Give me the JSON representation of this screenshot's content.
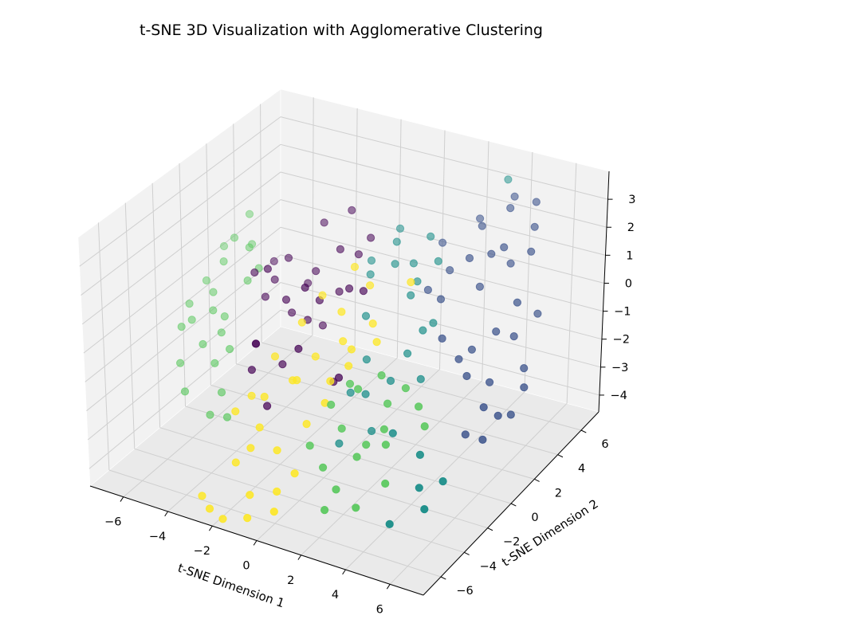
{
  "chart_data": {
    "type": "scatter3d",
    "title": "t-SNE 3D Visualization with Agglomerative Clustering",
    "xlabel": "t-SNE Dimension 1",
    "ylabel": "t-SNE Dimension 2",
    "zlabel": "",
    "xlim": [
      -7.5,
      7.5
    ],
    "ylim": [
      -7.5,
      7.5
    ],
    "zlim": [
      -4.6,
      4.0
    ],
    "xticks": [
      -6,
      -4,
      -2,
      0,
      2,
      4,
      6
    ],
    "yticks": [
      -6,
      -4,
      -2,
      0,
      2,
      4,
      6
    ],
    "zticks": [
      -4,
      -3,
      -2,
      -1,
      0,
      1,
      2,
      3
    ],
    "grid": true,
    "colormap": "viridis",
    "cluster_colors": [
      "#440154",
      "#3b528b",
      "#21918c",
      "#5ec962",
      "#fde725"
    ],
    "series": [
      {
        "cluster": 0,
        "points": [
          [
            -4.5,
            0.5,
            0.6
          ],
          [
            -4.0,
            1.2,
            0.2
          ],
          [
            -3.6,
            0.0,
            1.1
          ],
          [
            -3.0,
            0.8,
            -0.6
          ],
          [
            -2.6,
            2.0,
            0.5
          ],
          [
            -2.0,
            1.5,
            -1.1
          ],
          [
            -1.5,
            0.4,
            0.3
          ],
          [
            -3.3,
            -1.5,
            -0.9
          ],
          [
            -2.4,
            -1.0,
            -1.6
          ],
          [
            -1.8,
            -0.2,
            0.9
          ],
          [
            -4.8,
            2.5,
            0.2
          ],
          [
            -1.0,
            2.6,
            1.2
          ],
          [
            -2.8,
            3.0,
            1.8
          ],
          [
            -3.9,
            -0.5,
            -1.4
          ],
          [
            -1.2,
            -1.8,
            -0.5
          ],
          [
            -3.2,
            2.4,
            -0.2
          ],
          [
            -0.5,
            1.0,
            0.7
          ],
          [
            -2.2,
            -2.6,
            -2.4
          ],
          [
            -4.2,
            0.8,
            -0.3
          ],
          [
            -0.8,
            3.2,
            1.6
          ],
          [
            -3.6,
            1.6,
            0.9
          ],
          [
            -1.6,
            2.2,
            1.4
          ],
          [
            -2.9,
            0.2,
            0.1
          ],
          [
            0.5,
            -1.6,
            -1.2
          ],
          [
            -1.9,
            3.6,
            2.2
          ],
          [
            -0.2,
            -0.8,
            -1.8
          ],
          [
            -2.4,
            1.0,
            -0.8
          ],
          [
            0.2,
            0.9,
            0.8
          ],
          [
            -3.1,
            -2.2,
            -1.5
          ],
          [
            -1.3,
            1.6,
            0.2
          ]
        ]
      },
      {
        "cluster": 1,
        "points": [
          [
            4.5,
            3.5,
            2.0
          ],
          [
            5.0,
            4.2,
            1.5
          ],
          [
            3.8,
            3.0,
            1.9
          ],
          [
            5.6,
            5.0,
            2.6
          ],
          [
            4.2,
            5.5,
            2.8
          ],
          [
            6.0,
            3.0,
            0.8
          ],
          [
            5.5,
            2.2,
            0.0
          ],
          [
            4.8,
            1.5,
            -0.5
          ],
          [
            6.5,
            3.8,
            0.2
          ],
          [
            5.9,
            1.0,
            -1.2
          ],
          [
            6.8,
            2.2,
            -1.0
          ],
          [
            7.0,
            0.8,
            -2.0
          ],
          [
            6.3,
            -0.2,
            -1.5
          ],
          [
            4.0,
            0.5,
            0.1
          ],
          [
            3.2,
            1.8,
            0.8
          ],
          [
            2.8,
            3.2,
            1.2
          ],
          [
            4.4,
            2.8,
            1.1
          ],
          [
            5.3,
            0.2,
            -0.8
          ],
          [
            6.7,
            -1.0,
            -2.2
          ],
          [
            7.2,
            1.5,
            -1.3
          ],
          [
            3.5,
            4.5,
            2.4
          ],
          [
            4.9,
            3.8,
            2.2
          ],
          [
            2.5,
            2.0,
            0.9
          ],
          [
            5.8,
            4.4,
            2.0
          ],
          [
            4.1,
            6.0,
            3.0
          ],
          [
            2.0,
            4.0,
            1.7
          ],
          [
            6.1,
            2.6,
            -0.2
          ],
          [
            5.2,
            5.8,
            3.1
          ],
          [
            4.6,
            0.8,
            -0.6
          ],
          [
            3.0,
            5.2,
            2.3
          ],
          [
            6.9,
            -0.1,
            -1.7
          ],
          [
            5.7,
            -0.6,
            -2.4
          ]
        ]
      },
      {
        "cluster": 2,
        "points": [
          [
            1.0,
            2.0,
            1.5
          ],
          [
            1.5,
            2.6,
            1.4
          ],
          [
            0.5,
            3.0,
            1.8
          ],
          [
            2.0,
            1.5,
            0.8
          ],
          [
            0.0,
            1.8,
            1.0
          ],
          [
            2.5,
            2.8,
            1.6
          ],
          [
            1.8,
            3.4,
            2.1
          ],
          [
            3.2,
            1.2,
            0.2
          ],
          [
            2.6,
            0.2,
            -0.6
          ],
          [
            3.6,
            -0.5,
            -1.0
          ],
          [
            1.2,
            -0.6,
            -0.8
          ],
          [
            0.6,
            0.4,
            0.2
          ],
          [
            1.6,
            -1.4,
            -1.6
          ],
          [
            2.2,
            -2.0,
            -2.5
          ],
          [
            1.0,
            -2.5,
            -3.0
          ],
          [
            5.5,
            -4.0,
            -1.8
          ],
          [
            6.0,
            -5.0,
            -2.4
          ],
          [
            6.5,
            -5.5,
            -2.8
          ],
          [
            5.2,
            -6.0,
            -3.4
          ],
          [
            6.8,
            -4.5,
            -2.2
          ],
          [
            4.0,
            -3.5,
            -1.6
          ],
          [
            3.5,
            6.5,
            3.3
          ],
          [
            0.8,
            -1.2,
            -1.8
          ],
          [
            2.9,
            0.9,
            0.0
          ],
          [
            -0.3,
            2.4,
            1.2
          ],
          [
            1.9,
            2.2,
            1.0
          ],
          [
            2.4,
            -0.8,
            -1.2
          ],
          [
            0.3,
            3.6,
            2.0
          ]
        ]
      },
      {
        "cluster": 3,
        "points": [
          [
            -7.0,
            1.0,
            -0.4
          ],
          [
            -6.5,
            1.5,
            0.2
          ],
          [
            -6.8,
            -0.5,
            -1.2
          ],
          [
            -7.2,
            0.0,
            -0.9
          ],
          [
            -6.0,
            -0.2,
            -0.8
          ],
          [
            -5.8,
            2.5,
            0.6
          ],
          [
            -6.2,
            3.0,
            1.4
          ],
          [
            -5.5,
            1.8,
            0.8
          ],
          [
            -5.0,
            0.8,
            0.1
          ],
          [
            -4.8,
            -1.0,
            -1.6
          ],
          [
            -6.6,
            -1.8,
            -2.2
          ],
          [
            -6.0,
            -2.5,
            -2.8
          ],
          [
            -5.2,
            -1.5,
            -2.0
          ],
          [
            -4.5,
            -2.2,
            -2.6
          ],
          [
            -3.8,
            -3.0,
            -3.0
          ],
          [
            -6.9,
            2.2,
            0.4
          ],
          [
            -6.4,
            0.5,
            -0.5
          ],
          [
            -5.6,
            0.0,
            -1.0
          ],
          [
            -5.9,
            -1.2,
            -1.6
          ],
          [
            -4.7,
            -2.8,
            -3.2
          ],
          [
            -7.1,
            -0.8,
            -1.4
          ],
          [
            -6.3,
            2.0,
            0.9
          ],
          [
            -5.4,
            -0.6,
            -1.3
          ],
          [
            -4.9,
            1.5,
            0.3
          ],
          [
            1.5,
            -4.0,
            -1.0
          ],
          [
            2.5,
            -3.6,
            -0.4
          ],
          [
            3.2,
            -5.0,
            -2.0
          ],
          [
            4.0,
            -4.2,
            -1.2
          ],
          [
            2.0,
            -5.6,
            -2.4
          ],
          [
            3.6,
            -3.2,
            -0.8
          ],
          [
            4.4,
            -4.8,
            -1.4
          ],
          [
            2.8,
            -6.0,
            -2.8
          ],
          [
            5.0,
            -3.2,
            -0.6
          ],
          [
            1.2,
            -5.2,
            -2.0
          ],
          [
            3.0,
            -2.6,
            -0.2
          ],
          [
            4.8,
            -5.6,
            -2.3
          ],
          [
            2.2,
            -4.4,
            -1.5
          ],
          [
            5.6,
            -3.8,
            -0.9
          ],
          [
            3.9,
            -6.4,
            -3.0
          ],
          [
            1.8,
            -3.0,
            -0.6
          ],
          [
            4.2,
            -2.8,
            -0.3
          ],
          [
            2.6,
            -6.6,
            -3.3
          ],
          [
            3.4,
            -4.6,
            -1.7
          ]
        ]
      },
      {
        "cluster": 4,
        "points": [
          [
            -1.5,
            -4.0,
            -1.4
          ],
          [
            -0.5,
            -3.5,
            -0.8
          ],
          [
            0.5,
            -4.2,
            -1.8
          ],
          [
            -2.0,
            -5.5,
            -3.2
          ],
          [
            -1.0,
            -6.2,
            -3.8
          ],
          [
            0.0,
            -5.8,
            -3.6
          ],
          [
            -2.5,
            -6.8,
            -4.4
          ],
          [
            -3.0,
            -6.5,
            -4.2
          ],
          [
            -1.8,
            -7.0,
            -4.5
          ],
          [
            -0.8,
            -6.8,
            -4.3
          ],
          [
            0.8,
            -2.8,
            -0.8
          ],
          [
            1.2,
            -1.8,
            0.0
          ],
          [
            -0.2,
            -2.2,
            -0.4
          ],
          [
            0.3,
            -1.0,
            0.8
          ],
          [
            -1.2,
            -1.5,
            0.3
          ],
          [
            0.9,
            0.2,
            1.4
          ],
          [
            1.6,
            -0.8,
            0.6
          ],
          [
            -0.6,
            -3.0,
            -1.0
          ],
          [
            -1.8,
            -2.6,
            -0.6
          ],
          [
            0.1,
            0.4,
            1.8
          ],
          [
            1.0,
            -3.6,
            -1.2
          ],
          [
            -1.4,
            -4.6,
            -2.2
          ],
          [
            -0.4,
            -5.0,
            -2.6
          ],
          [
            0.6,
            -5.4,
            -3.0
          ],
          [
            -2.2,
            -3.8,
            -1.6
          ],
          [
            2.0,
            -1.2,
            0.2
          ],
          [
            -0.9,
            -0.4,
            0.9
          ],
          [
            1.4,
            -2.4,
            -0.3
          ],
          [
            -2.6,
            -4.4,
            -2.0
          ],
          [
            0.2,
            -6.4,
            -4.0
          ],
          [
            -1.6,
            -5.0,
            -2.8
          ],
          [
            0.7,
            -1.6,
            0.1
          ],
          [
            2.4,
            0.8,
            1.6
          ]
        ]
      }
    ]
  }
}
